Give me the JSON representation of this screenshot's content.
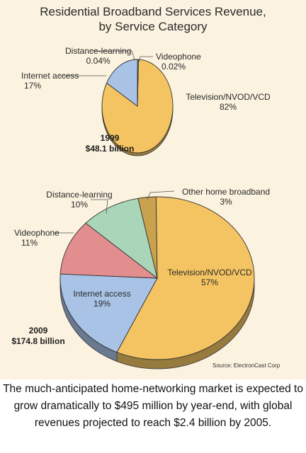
{
  "chart_data": [
    {
      "type": "pie",
      "title": "Residential Broadband Services Revenue,",
      "subtitle": "by Service Category",
      "year": "1999",
      "total": "$48.1 billion",
      "slices": [
        {
          "name": "Television/NVOD/VCD",
          "value_label": "82%",
          "value": 82,
          "color": "#f4c462"
        },
        {
          "name": "Internet access",
          "value_label": "17%",
          "value": 17,
          "color": "#a9c3e6"
        },
        {
          "name": "Distance-learning",
          "value_label": "0.04%",
          "value": 0.04,
          "color": "#a9d6b8"
        },
        {
          "name": "Videophone",
          "value_label": "0.02%",
          "value": 0.02,
          "color": "#e38e8e"
        }
      ]
    },
    {
      "type": "pie",
      "year": "2009",
      "total": "$174.8 billion",
      "slices": [
        {
          "name": "Television/NVOD/VCD",
          "value_label": "57%",
          "value": 57,
          "color": "#f4c462"
        },
        {
          "name": "Internet access",
          "value_label": "19%",
          "value": 19,
          "color": "#a9c3e6"
        },
        {
          "name": "Videophone",
          "value_label": "11%",
          "value": 11,
          "color": "#e38e8e"
        },
        {
          "name": "Distance-learning",
          "value_label": "10%",
          "value": 10,
          "color": "#a9d6b8"
        },
        {
          "name": "Other home broadband",
          "value_label": "3%",
          "value": 3,
          "color": "#c9a24e"
        }
      ]
    }
  ],
  "source": "Source: ElectronCast Corp",
  "caption": "The much-anticipated home-networking market is expected to grow dramatically to $495 million by year-end, with global revenues projected to reach $2.4 billion by 2005.",
  "colors": {
    "background": "#fbf2df",
    "outline": "#333333"
  }
}
